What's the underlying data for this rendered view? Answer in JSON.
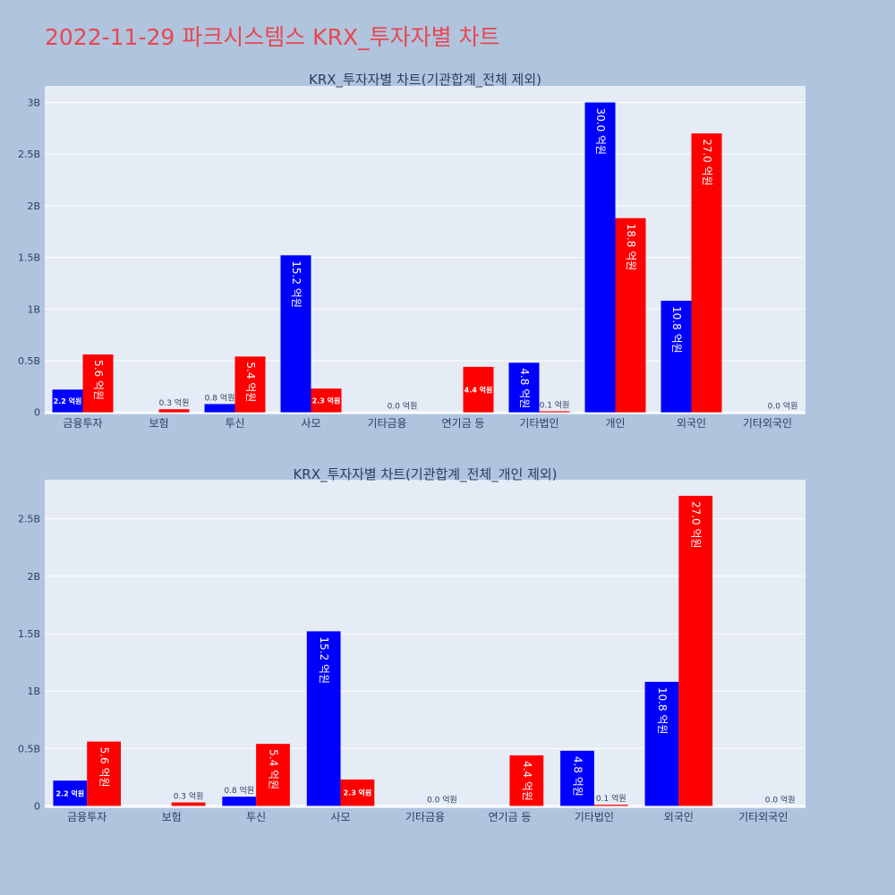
{
  "page_title": "2022-11-29 파크시스템스 KRX_투자자별 차트",
  "colors": {
    "buy": "#0000ff",
    "sell": "#ff0000",
    "plot_bg": "#e5ecf6",
    "page_bg": "#b0c4de",
    "title": "#e8474f"
  },
  "chart_data": [
    {
      "type": "bar",
      "title": "KRX_투자자별 차트(기관합계_전체 제외)",
      "categories": [
        "금융투자",
        "보험",
        "투신",
        "사모",
        "기타금융",
        "연기금 등",
        "기타법인",
        "개인",
        "외국인",
        "기타외국인"
      ],
      "series": [
        {
          "values": [
            0.22,
            0,
            0.08,
            1.52,
            0,
            0,
            0.48,
            3.0,
            1.08,
            0
          ],
          "labels": [
            "2.2 억원",
            "",
            "0.8 억원",
            "15.2 억원",
            "",
            "",
            "4.8 억원",
            "30.0 억원",
            "10.8 억원",
            ""
          ]
        },
        {
          "values": [
            0.56,
            0.03,
            0.54,
            0.23,
            0,
            0.44,
            0.01,
            1.88,
            2.7,
            0
          ],
          "labels": [
            "5.6 억원",
            "0.3 억원",
            "5.4 억원",
            "2.3 억원",
            "0.0 억원",
            "4.4 억원",
            "0.1 억원",
            "18.8 억원",
            "27.0 억원",
            "0.0 억원"
          ]
        }
      ],
      "yticks": [
        0,
        0.5,
        1,
        1.5,
        2,
        2.5,
        3
      ],
      "ytick_labels": [
        "0",
        "0.5B",
        "1B",
        "1.5B",
        "2B",
        "2.5B",
        "3B"
      ],
      "ylim": [
        -0.02,
        3.16
      ],
      "grid": true
    },
    {
      "type": "bar",
      "title": "KRX_투자자별 차트(기관합계_전체_개인 제외)",
      "categories": [
        "금융투자",
        "보험",
        "투신",
        "사모",
        "기타금융",
        "연기금 등",
        "기타법인",
        "외국인",
        "기타외국인"
      ],
      "series": [
        {
          "values": [
            0.22,
            0,
            0.08,
            1.52,
            0,
            0,
            0.48,
            1.08,
            0
          ],
          "labels": [
            "2.2 억원",
            "",
            "0.8 억원",
            "15.2 억원",
            "",
            "",
            "4.8 억원",
            "10.8 억원",
            ""
          ]
        },
        {
          "values": [
            0.56,
            0.03,
            0.54,
            0.23,
            0,
            0.44,
            0.01,
            2.7,
            0
          ],
          "labels": [
            "5.6 억원",
            "0.3 억원",
            "5.4 억원",
            "2.3 억원",
            "0.0 억원",
            "4.4 억원",
            "0.1 억원",
            "27.0 억원",
            "0.0 억원"
          ]
        }
      ],
      "yticks": [
        0,
        0.5,
        1,
        1.5,
        2,
        2.5
      ],
      "ytick_labels": [
        "0",
        "0.5B",
        "1B",
        "1.5B",
        "2B",
        "2.5B"
      ],
      "ylim": [
        -0.02,
        2.84
      ],
      "grid": true
    }
  ]
}
